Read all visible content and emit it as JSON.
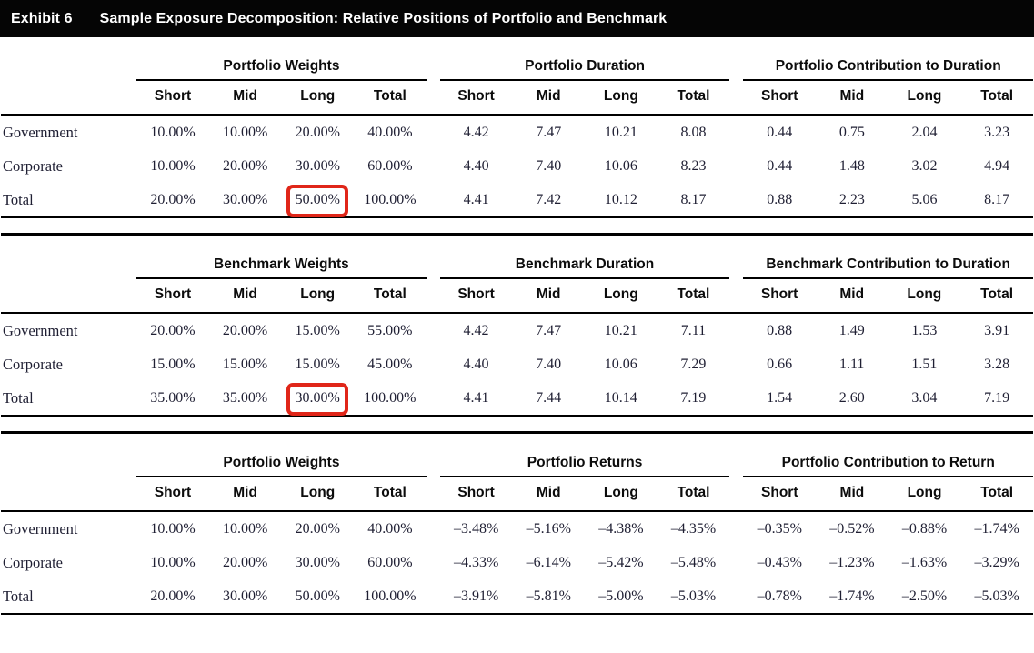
{
  "exhibit": {
    "label": "Exhibit 6",
    "title": "Sample Exposure Decomposition: Relative Positions of Portfolio and Benchmark"
  },
  "colors": {
    "header_bar_bg": "#050505",
    "header_bar_text": "#ffffff",
    "rule": "#000000",
    "data_text": "#1f1f33",
    "highlight_box": "#e02619"
  },
  "sub_columns": [
    "Short",
    "Mid",
    "Long",
    "Total"
  ],
  "row_labels": [
    "Government",
    "Corporate",
    "Total"
  ],
  "tables": [
    {
      "groups": [
        {
          "title": "Portfolio Weights",
          "rows": [
            [
              "10.00%",
              "10.00%",
              "20.00%",
              "40.00%"
            ],
            [
              "10.00%",
              "20.00%",
              "30.00%",
              "60.00%"
            ],
            [
              "20.00%",
              "30.00%",
              "50.00%",
              "100.00%"
            ]
          ]
        },
        {
          "title": "Portfolio Duration",
          "rows": [
            [
              "4.42",
              "7.47",
              "10.21",
              "8.08"
            ],
            [
              "4.40",
              "7.40",
              "10.06",
              "8.23"
            ],
            [
              "4.41",
              "7.42",
              "10.12",
              "8.17"
            ]
          ]
        },
        {
          "title": "Portfolio Contribution to Duration",
          "rows": [
            [
              "0.44",
              "0.75",
              "2.04",
              "3.23"
            ],
            [
              "0.44",
              "1.48",
              "3.02",
              "4.94"
            ],
            [
              "0.88",
              "2.23",
              "5.06",
              "8.17"
            ]
          ]
        }
      ],
      "highlight": {
        "group": 0,
        "row": 2,
        "col": 2
      }
    },
    {
      "groups": [
        {
          "title": "Benchmark Weights",
          "rows": [
            [
              "20.00%",
              "20.00%",
              "15.00%",
              "55.00%"
            ],
            [
              "15.00%",
              "15.00%",
              "15.00%",
              "45.00%"
            ],
            [
              "35.00%",
              "35.00%",
              "30.00%",
              "100.00%"
            ]
          ]
        },
        {
          "title": "Benchmark Duration",
          "rows": [
            [
              "4.42",
              "7.47",
              "10.21",
              "7.11"
            ],
            [
              "4.40",
              "7.40",
              "10.06",
              "7.29"
            ],
            [
              "4.41",
              "7.44",
              "10.14",
              "7.19"
            ]
          ]
        },
        {
          "title": "Benchmark Contribution to Duration",
          "rows": [
            [
              "0.88",
              "1.49",
              "1.53",
              "3.91"
            ],
            [
              "0.66",
              "1.11",
              "1.51",
              "3.28"
            ],
            [
              "1.54",
              "2.60",
              "3.04",
              "7.19"
            ]
          ]
        }
      ],
      "highlight": {
        "group": 0,
        "row": 2,
        "col": 2
      }
    },
    {
      "groups": [
        {
          "title": "Portfolio Weights",
          "rows": [
            [
              "10.00%",
              "10.00%",
              "20.00%",
              "40.00%"
            ],
            [
              "10.00%",
              "20.00%",
              "30.00%",
              "60.00%"
            ],
            [
              "20.00%",
              "30.00%",
              "50.00%",
              "100.00%"
            ]
          ]
        },
        {
          "title": "Portfolio Returns",
          "rows": [
            [
              "–3.48%",
              "–5.16%",
              "–4.38%",
              "–4.35%"
            ],
            [
              "–4.33%",
              "–6.14%",
              "–5.42%",
              "–5.48%"
            ],
            [
              "–3.91%",
              "–5.81%",
              "–5.00%",
              "–5.03%"
            ]
          ]
        },
        {
          "title": "Portfolio Contribution to Return",
          "rows": [
            [
              "–0.35%",
              "–0.52%",
              "–0.88%",
              "–1.74%"
            ],
            [
              "–0.43%",
              "–1.23%",
              "–1.63%",
              "–3.29%"
            ],
            [
              "–0.78%",
              "–1.74%",
              "–2.50%",
              "–5.03%"
            ]
          ]
        }
      ],
      "highlight": null
    }
  ]
}
